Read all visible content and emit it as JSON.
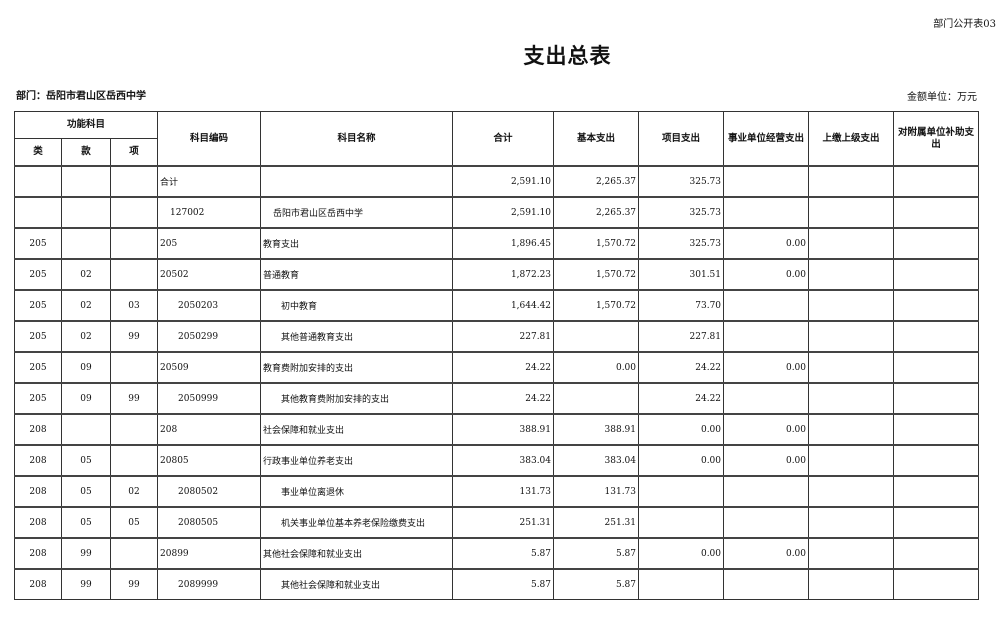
{
  "form_no": "部门公开表03",
  "title": "支出总表",
  "department": "部门：岳阳市君山区岳西中学",
  "unit": "金额单位：万元",
  "headers": {
    "function_subject": "功能科目",
    "lei": "类",
    "kuan": "款",
    "xiang": "项",
    "code": "科目编码",
    "name": "科目名称",
    "total": "合计",
    "basic": "基本支出",
    "project": "项目支出",
    "business": "事业单位经营支出",
    "upper": "上缴上级支出",
    "subsidy": "对附属单位补助支出"
  },
  "rows": [
    {
      "lei": "",
      "kuan": "",
      "xiang": "",
      "code": "合计",
      "name": "",
      "total": "2,591.10",
      "basic": "2,265.37",
      "project": "325.73",
      "business": "",
      "upper": "",
      "subsidy": "",
      "level": 0
    },
    {
      "lei": "",
      "kuan": "",
      "xiang": "",
      "code": "127002",
      "name": "岳阳市君山区岳西中学",
      "total": "2,591.10",
      "basic": "2,265.37",
      "project": "325.73",
      "business": "",
      "upper": "",
      "subsidy": "",
      "level": 1
    },
    {
      "lei": "205",
      "kuan": "",
      "xiang": "",
      "code": "205",
      "name": "教育支出",
      "total": "1,896.45",
      "basic": "1,570.72",
      "project": "325.73",
      "business": "0.00",
      "upper": "",
      "subsidy": "",
      "level": 0
    },
    {
      "lei": "205",
      "kuan": "02",
      "xiang": "",
      "code": "20502",
      "name": "普通教育",
      "total": "1,872.23",
      "basic": "1,570.72",
      "project": "301.51",
      "business": "0.00",
      "upper": "",
      "subsidy": "",
      "level": 0
    },
    {
      "lei": "205",
      "kuan": "02",
      "xiang": "03",
      "code": "2050203",
      "name": "初中教育",
      "total": "1,644.42",
      "basic": "1,570.72",
      "project": "73.70",
      "business": "",
      "upper": "",
      "subsidy": "",
      "level": 2
    },
    {
      "lei": "205",
      "kuan": "02",
      "xiang": "99",
      "code": "2050299",
      "name": "其他普通教育支出",
      "total": "227.81",
      "basic": "",
      "project": "227.81",
      "business": "",
      "upper": "",
      "subsidy": "",
      "level": 2
    },
    {
      "lei": "205",
      "kuan": "09",
      "xiang": "",
      "code": "20509",
      "name": "教育费附加安排的支出",
      "total": "24.22",
      "basic": "0.00",
      "project": "24.22",
      "business": "0.00",
      "upper": "",
      "subsidy": "",
      "level": 0
    },
    {
      "lei": "205",
      "kuan": "09",
      "xiang": "99",
      "code": "2050999",
      "name": "其他教育费附加安排的支出",
      "total": "24.22",
      "basic": "",
      "project": "24.22",
      "business": "",
      "upper": "",
      "subsidy": "",
      "level": 2
    },
    {
      "lei": "208",
      "kuan": "",
      "xiang": "",
      "code": "208",
      "name": "社会保障和就业支出",
      "total": "388.91",
      "basic": "388.91",
      "project": "0.00",
      "business": "0.00",
      "upper": "",
      "subsidy": "",
      "level": 0
    },
    {
      "lei": "208",
      "kuan": "05",
      "xiang": "",
      "code": "20805",
      "name": "行政事业单位养老支出",
      "total": "383.04",
      "basic": "383.04",
      "project": "0.00",
      "business": "0.00",
      "upper": "",
      "subsidy": "",
      "level": 0
    },
    {
      "lei": "208",
      "kuan": "05",
      "xiang": "02",
      "code": "2080502",
      "name": "事业单位离退休",
      "total": "131.73",
      "basic": "131.73",
      "project": "",
      "business": "",
      "upper": "",
      "subsidy": "",
      "level": 2
    },
    {
      "lei": "208",
      "kuan": "05",
      "xiang": "05",
      "code": "2080505",
      "name": "机关事业单位基本养老保险缴费支出",
      "total": "251.31",
      "basic": "251.31",
      "project": "",
      "business": "",
      "upper": "",
      "subsidy": "",
      "level": 2
    },
    {
      "lei": "208",
      "kuan": "99",
      "xiang": "",
      "code": "20899",
      "name": "其他社会保障和就业支出",
      "total": "5.87",
      "basic": "5.87",
      "project": "0.00",
      "business": "0.00",
      "upper": "",
      "subsidy": "",
      "level": 0
    },
    {
      "lei": "208",
      "kuan": "99",
      "xiang": "99",
      "code": "2089999",
      "name": "其他社会保障和就业支出",
      "total": "5.87",
      "basic": "5.87",
      "project": "",
      "business": "",
      "upper": "",
      "subsidy": "",
      "level": 2
    }
  ]
}
